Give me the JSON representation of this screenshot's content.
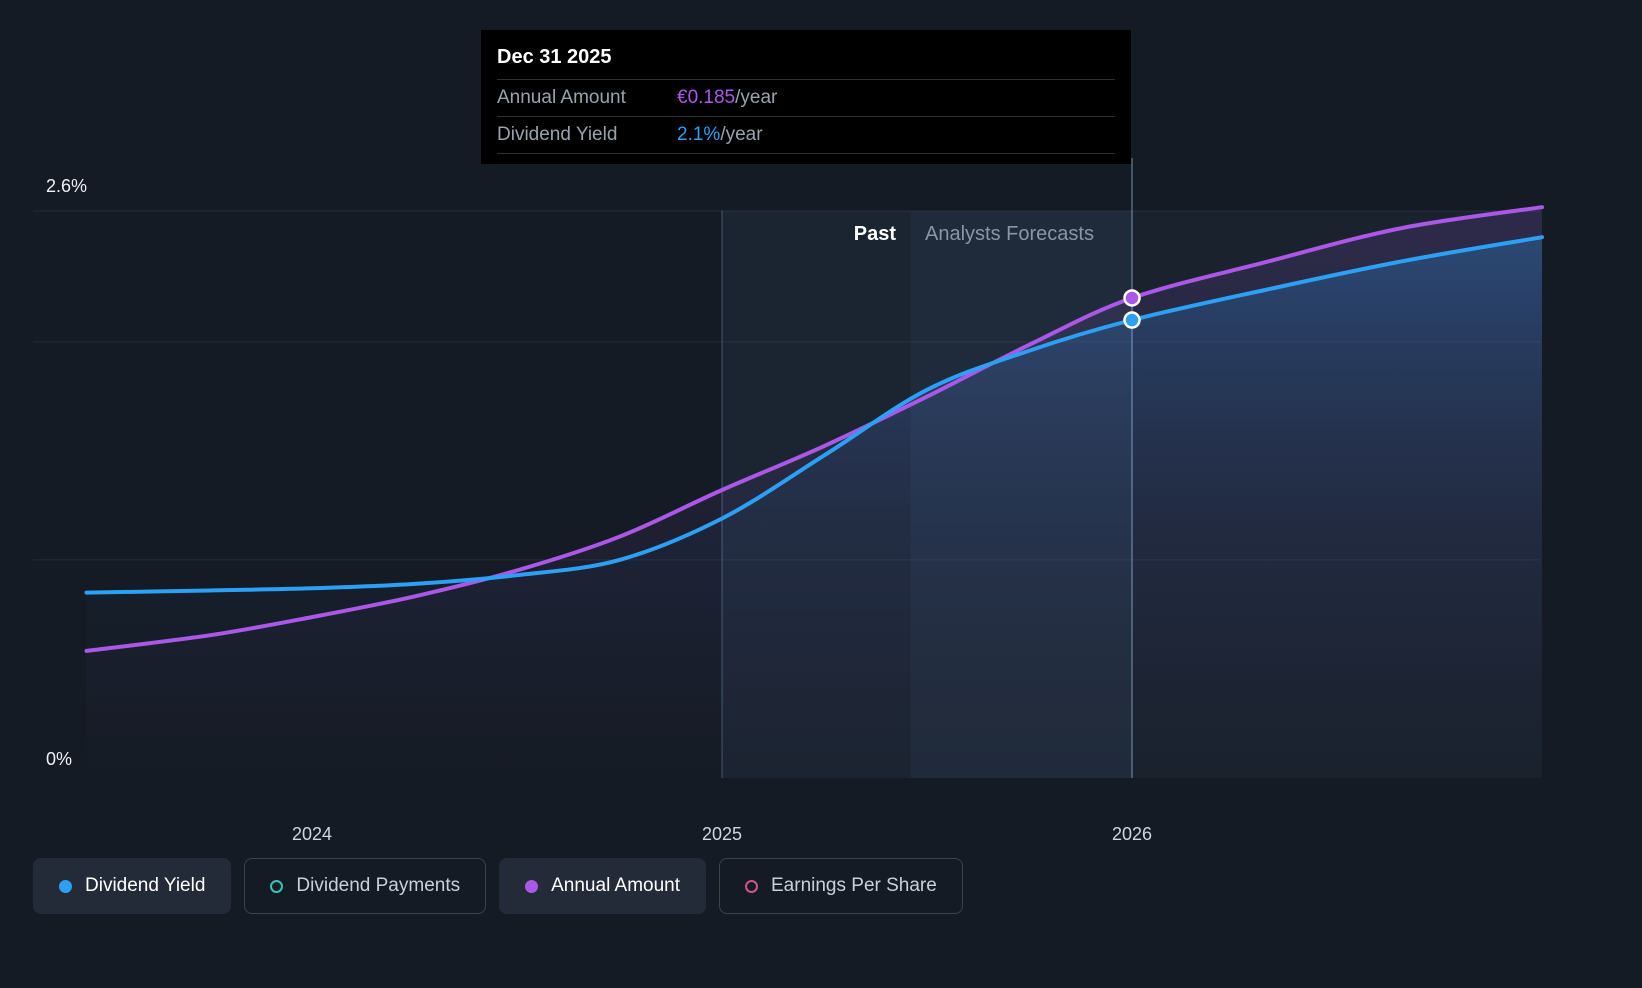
{
  "tooltip": {
    "date": "Dec 31 2025",
    "rows": [
      {
        "label": "Annual Amount",
        "value": "€0.185",
        "suffix": "/year",
        "color": "#ab57e8"
      },
      {
        "label": "Dividend Yield",
        "value": "2.1%",
        "suffix": "/year",
        "color": "#2ba0f5"
      }
    ]
  },
  "axis": {
    "y_top": "2.6%",
    "y_bottom": "0%",
    "x_ticks": [
      "2024",
      "2025",
      "2026"
    ]
  },
  "zones": {
    "past": "Past",
    "forecast": "Analysts Forecasts"
  },
  "legend": [
    {
      "label": "Dividend Yield",
      "active": true,
      "color": "#2ba0f5"
    },
    {
      "label": "Dividend Payments",
      "active": false,
      "color": "#35c4b5"
    },
    {
      "label": "Annual Amount",
      "active": true,
      "color": "#ab57e8"
    },
    {
      "label": "Earnings Per Share",
      "active": false,
      "color": "#d6518f"
    }
  ],
  "chart_data": {
    "type": "line",
    "x_unit": "year",
    "x_range": [
      2023.45,
      2027
    ],
    "x_tick_years": [
      2024,
      2025,
      2026
    ],
    "ylim_percent": [
      0,
      2.6
    ],
    "gridlines_pct": [
      1.0,
      2.0,
      2.6
    ],
    "past_forecast_divider_year": 2025.46,
    "legend_position": "bottom",
    "series": [
      {
        "id": "yield",
        "name": "Dividend Yield",
        "axis": "percent",
        "unit": "%",
        "color": "#2ba0f5",
        "x": [
          2023.45,
          2023.75,
          2024,
          2024.25,
          2024.5,
          2024.75,
          2025,
          2025.25,
          2025.5,
          2025.75,
          2026,
          2026.33,
          2026.66,
          2027
        ],
        "values": [
          0.85,
          0.86,
          0.87,
          0.89,
          0.93,
          1.0,
          1.19,
          1.48,
          1.78,
          1.96,
          2.1,
          2.24,
          2.37,
          2.48
        ]
      },
      {
        "id": "amount",
        "name": "Annual Amount",
        "axis": "currency",
        "unit": "€/year",
        "color": "#ab57e8",
        "x": [
          2023.45,
          2023.75,
          2024,
          2024.25,
          2024.5,
          2024.75,
          2025,
          2025.25,
          2025.5,
          2025.75,
          2026,
          2026.33,
          2026.66,
          2027
        ],
        "values": [
          0.049,
          0.055,
          0.062,
          0.07,
          0.08,
          0.093,
          0.111,
          0.128,
          0.147,
          0.167,
          0.185,
          0.199,
          0.212,
          0.22
        ]
      }
    ],
    "markers": [
      {
        "series": "Annual Amount",
        "x": 2026,
        "value": 0.185,
        "label": "€0.185/year"
      },
      {
        "series": "Dividend Yield",
        "x": 2026,
        "value": 2.1,
        "label": "2.1%/year"
      }
    ]
  }
}
